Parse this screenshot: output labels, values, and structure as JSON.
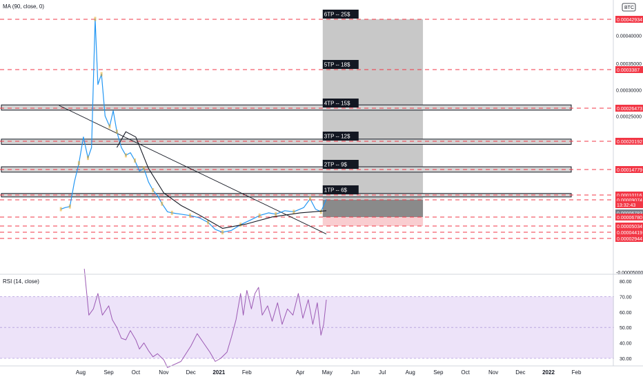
{
  "main_panel": {
    "indicator_label": "MA (90, close, 0)",
    "currency_badge": "BTC"
  },
  "rsi_panel": {
    "indicator_label": "RSI (14, close)"
  },
  "targets": [
    {
      "label": "6TP -- 25$",
      "price": 0.00042934
    },
    {
      "label": "5TP -- 18$",
      "price": 0.0003387
    },
    {
      "label": "4TP -- 15$",
      "price": 0.00026473
    },
    {
      "label": "3TP -- 12$",
      "price": 0.00020192
    },
    {
      "label": "2TP -- 9$",
      "price": 0.00014779
    },
    {
      "label": "1TP -- 6$",
      "price": 0.00010116
    }
  ],
  "price_tags": [
    {
      "text": "0.00042934",
      "price": 0.00042934,
      "color": "#f23645"
    },
    {
      "text": "0.0003387",
      "price": 0.0003387,
      "color": "#f23645"
    },
    {
      "text": "0.00026473",
      "price": 0.00026473,
      "color": "#f23645"
    },
    {
      "text": "0.00020192",
      "price": 0.00020192,
      "color": "#f23645"
    },
    {
      "text": "0.00014779",
      "price": 0.00014779,
      "color": "#f23645"
    },
    {
      "text": "0.00010116",
      "price": 0.00010116,
      "color": "#f23645"
    },
    {
      "text": "0.00009074",
      "price": 9.074e-05,
      "color": "#f23645"
    },
    {
      "text": "13:32:43",
      "price": 8.35e-05,
      "color": "#f23645"
    },
    {
      "text": "0.00006783",
      "price": 6.783e-05,
      "color": "#787b86"
    },
    {
      "text": "0.00006780",
      "price": 6.18e-05,
      "color": "#f23645"
    },
    {
      "text": "0.00005034",
      "price": 5.03e-05,
      "color": "#f23645"
    },
    {
      "text": "0.00004419",
      "price": 4.42e-05,
      "color": "#f23645"
    },
    {
      "text": "0.00002944",
      "price": 2.94e-05,
      "color": "#f23645"
    }
  ],
  "chart_data": [
    {
      "type": "line",
      "title": "BTC",
      "price_axis_ticks": [
        {
          "text": "0.00040000",
          "value": 0.0004
        },
        {
          "text": "0.00035000",
          "value": 0.00035
        },
        {
          "text": "0.00030000",
          "value": 0.0003
        },
        {
          "text": "0.00025000",
          "value": 0.00025
        },
        {
          "text": "-0.00005000",
          "value": -5e-05
        }
      ],
      "time_axis_ticks": [
        "Aug",
        "Sep",
        "Oct",
        "Nov",
        "Dec",
        "2021",
        "Feb",
        "Apr",
        "May",
        "Jun",
        "Jul",
        "Aug",
        "Sep",
        "Oct",
        "Nov",
        "Dec",
        "2022",
        "Feb"
      ],
      "ylim": [
        -5e-05,
        0.00045
      ],
      "support_zones": [
        {
          "low": 0.000261,
          "high": 0.000271
        },
        {
          "low": 0.000196,
          "high": 0.000206
        },
        {
          "low": 0.000143,
          "high": 0.000153
        },
        {
          "low": 9.7e-05,
          "high": 0.000104
        }
      ],
      "trendline": {
        "from": [
          "2020-07-08",
          0.00027
        ],
        "to": [
          "2021-04-30",
          4e-05
        ]
      },
      "target_box": {
        "from": "2021-04-26",
        "to": "2021-08-15",
        "top": 0.00042934,
        "entry": 9.074e-05,
        "stop": 5.03e-05
      },
      "series": [
        {
          "name": "price",
          "color": "#2196f3",
          "points": [
            [
              "2020-07-10",
              7.5e-05
            ],
            [
              "2020-07-15",
              7.8e-05
            ],
            [
              "2020-07-20",
              8e-05
            ],
            [
              "2020-07-25",
              0.000125
            ],
            [
              "2020-07-30",
              0.00016
            ],
            [
              "2020-08-04",
              0.00021
            ],
            [
              "2020-08-09",
              0.00017
            ],
            [
              "2020-08-13",
              0.00019
            ],
            [
              "2020-08-17",
              0.00043
            ],
            [
              "2020-08-20",
              0.00031
            ],
            [
              "2020-08-24",
              0.00033
            ],
            [
              "2020-08-28",
              0.00025
            ],
            [
              "2020-09-02",
              0.00023
            ],
            [
              "2020-09-06",
              0.00026
            ],
            [
              "2020-09-10",
              0.00022
            ],
            [
              "2020-09-15",
              0.00019
            ],
            [
              "2020-09-20",
              0.000175
            ],
            [
              "2020-09-25",
              0.00018
            ],
            [
              "2020-09-30",
              0.000165
            ],
            [
              "2020-10-05",
              0.000145
            ],
            [
              "2020-10-10",
              0.00015
            ],
            [
              "2020-10-15",
              0.000125
            ],
            [
              "2020-10-20",
              0.00011
            ],
            [
              "2020-10-25",
              0.0001
            ],
            [
              "2020-10-30",
              8.5e-05
            ],
            [
              "2020-11-05",
              7e-05
            ],
            [
              "2020-11-10",
              6.8e-05
            ],
            [
              "2020-11-20",
              6.6e-05
            ],
            [
              "2020-11-30",
              6.4e-05
            ],
            [
              "2020-12-10",
              6.1e-05
            ],
            [
              "2020-12-20",
              5.5e-05
            ],
            [
              "2020-12-28",
              4.7e-05
            ],
            [
              "2021-01-05",
              4.4e-05
            ],
            [
              "2021-01-15",
              4.6e-05
            ],
            [
              "2021-01-25",
              5.2e-05
            ],
            [
              "2021-02-05",
              5.8e-05
            ],
            [
              "2021-02-15",
              6.4e-05
            ],
            [
              "2021-02-25",
              6.8e-05
            ],
            [
              "2021-03-05",
              6.6e-05
            ],
            [
              "2021-03-15",
              7.2e-05
            ],
            [
              "2021-03-25",
              7e-05
            ],
            [
              "2021-04-05",
              7.8e-05
            ],
            [
              "2021-04-12",
              9.3e-05
            ],
            [
              "2021-04-18",
              7.5e-05
            ],
            [
              "2021-04-24",
              7e-05
            ],
            [
              "2021-04-30",
              9.2e-05
            ]
          ]
        },
        {
          "name": "MA (90)",
          "color": "#131722",
          "points": [
            [
              "2020-09-10",
              0.00019
            ],
            [
              "2020-09-20",
              0.00022
            ],
            [
              "2020-10-01",
              0.00021
            ],
            [
              "2020-10-15",
              0.00015
            ],
            [
              "2020-11-01",
              0.000105
            ],
            [
              "2020-11-20",
              8.2e-05
            ],
            [
              "2020-12-10",
              6.5e-05
            ],
            [
              "2021-01-05",
              4.8e-05
            ],
            [
              "2021-02-01",
              5.3e-05
            ],
            [
              "2021-03-01",
              6.2e-05
            ],
            [
              "2021-04-01",
              6.8e-05
            ],
            [
              "2021-04-30",
              7.2e-05
            ]
          ]
        }
      ]
    },
    {
      "type": "line",
      "title": "RSI (14, close)",
      "y_ticks": [
        80,
        70,
        60,
        50,
        40,
        30
      ],
      "ylim": [
        25,
        85
      ],
      "band": [
        30,
        70
      ],
      "series": [
        {
          "name": "RSI",
          "color": "#9c5ab4",
          "points": [
            [
              "2020-08-05",
              88
            ],
            [
              "2020-08-10",
              58
            ],
            [
              "2020-08-15",
              62
            ],
            [
              "2020-08-20",
              72
            ],
            [
              "2020-08-25",
              58
            ],
            [
              "2020-09-01",
              64
            ],
            [
              "2020-09-05",
              55
            ],
            [
              "2020-09-10",
              50
            ],
            [
              "2020-09-15",
              43
            ],
            [
              "2020-09-20",
              42
            ],
            [
              "2020-09-25",
              48
            ],
            [
              "2020-10-01",
              42
            ],
            [
              "2020-10-05",
              36
            ],
            [
              "2020-10-10",
              40
            ],
            [
              "2020-10-15",
              35
            ],
            [
              "2020-10-20",
              31
            ],
            [
              "2020-10-25",
              33
            ],
            [
              "2020-11-01",
              29
            ],
            [
              "2020-11-05",
              24
            ],
            [
              "2020-11-20",
              28
            ],
            [
              "2020-12-01",
              38
            ],
            [
              "2020-12-08",
              46
            ],
            [
              "2020-12-15",
              40
            ],
            [
              "2020-12-22",
              34
            ],
            [
              "2020-12-28",
              28
            ],
            [
              "2021-01-03",
              30
            ],
            [
              "2021-01-10",
              34
            ],
            [
              "2021-01-15",
              44
            ],
            [
              "2021-01-20",
              55
            ],
            [
              "2021-01-25",
              72
            ],
            [
              "2021-01-28",
              58
            ],
            [
              "2021-02-01",
              74
            ],
            [
              "2021-02-06",
              62
            ],
            [
              "2021-02-10",
              72
            ],
            [
              "2021-02-14",
              76
            ],
            [
              "2021-02-18",
              58
            ],
            [
              "2021-02-24",
              64
            ],
            [
              "2021-03-01",
              54
            ],
            [
              "2021-03-07",
              66
            ],
            [
              "2021-03-12",
              52
            ],
            [
              "2021-03-18",
              62
            ],
            [
              "2021-03-24",
              58
            ],
            [
              "2021-03-30",
              72
            ],
            [
              "2021-04-04",
              56
            ],
            [
              "2021-04-10",
              68
            ],
            [
              "2021-04-15",
              52
            ],
            [
              "2021-04-20",
              66
            ],
            [
              "2021-04-24",
              45
            ],
            [
              "2021-04-27",
              52
            ],
            [
              "2021-04-30",
              68
            ]
          ]
        }
      ]
    }
  ]
}
